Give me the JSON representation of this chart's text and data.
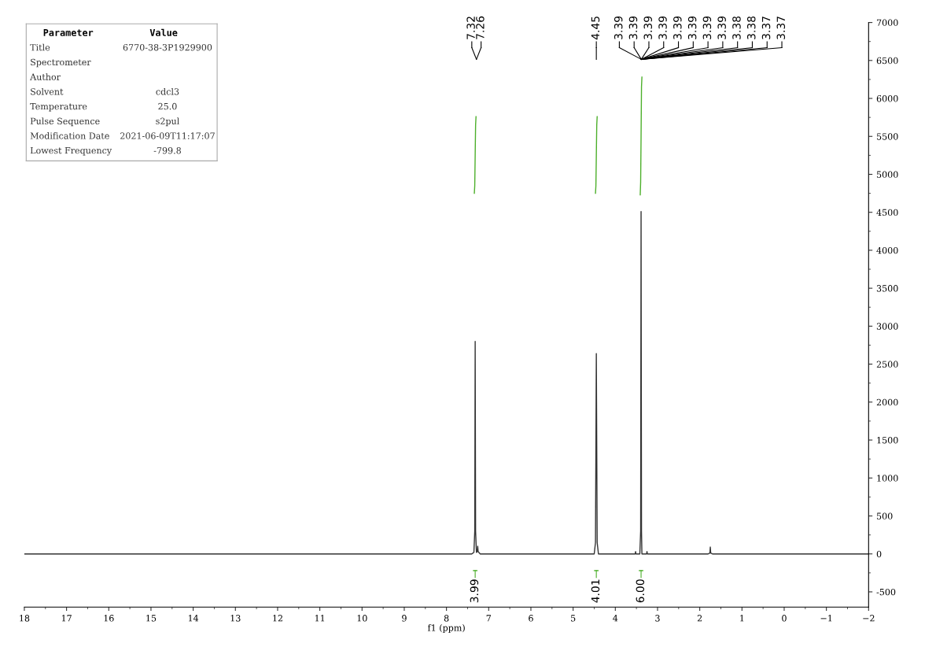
{
  "chart_data": [
    {
      "type": "other",
      "annotations": [
        "Parameter",
        "Value"
      ],
      "categories": [
        "Title",
        "Spectrometer",
        "Author",
        "Solvent",
        "Temperature",
        "Pulse Sequence",
        "Modification Date",
        "Lowest Frequency"
      ],
      "value_labels": [
        "6770-38-3P1929900",
        null,
        null,
        "cdcl3",
        "25.0",
        "s2pul",
        "2021-06-09T11:17:07",
        "-799.8"
      ]
    },
    {
      "type": "line",
      "xlabel": "f1 (ppm)",
      "xlim": [
        18,
        -2
      ],
      "ylim": [
        -700,
        7000
      ],
      "xticks": [
        18,
        17,
        16,
        15,
        14,
        13,
        12,
        11,
        10,
        9,
        8,
        7,
        6,
        5,
        4,
        3,
        2,
        1,
        0,
        {
          "value": -1,
          "label": "−1"
        },
        {
          "value": -2,
          "label": "−2"
        }
      ],
      "yticks": [
        -500,
        0,
        500,
        1000,
        1500,
        2000,
        2500,
        3000,
        3500,
        4000,
        4500,
        5000,
        5500,
        6000,
        6500,
        7000
      ],
      "grid": false,
      "legend": false,
      "marker": "none",
      "line_style": "solid",
      "series": [
        {
          "color": "#333333",
          "x": [
            18,
            8,
            7.4,
            7.35,
            7.33,
            7.32,
            7.31,
            7.29,
            7.27,
            7.26,
            7.25,
            7.2,
            5,
            4.5,
            4.47,
            4.45,
            4.43,
            4.4,
            3.6,
            3.53,
            3.52,
            3.51,
            3.42,
            3.4,
            3.39,
            3.38,
            3.37,
            3.3,
            3.26,
            3.25,
            3.24,
            3.2,
            1.8,
            1.76,
            1.75,
            1.74,
            1.7,
            -2
          ],
          "values": [
            0,
            0,
            0,
            20,
            300,
            2800,
            300,
            20,
            30,
            100,
            30,
            0,
            0,
            0,
            150,
            2640,
            150,
            0,
            0,
            0,
            30,
            0,
            0,
            300,
            4510,
            300,
            0,
            0,
            0,
            30,
            0,
            0,
            0,
            10,
            90,
            10,
            0,
            0
          ]
        },
        {
          "color": "#4caf2a",
          "x": [
            7.34,
            7.33,
            7.32,
            7.31,
            7.3
          ],
          "values": [
            4750,
            4850,
            5250,
            5650,
            5760
          ]
        },
        {
          "color": "#4caf2a",
          "x": [
            4.47,
            4.46,
            4.45,
            4.44,
            4.43
          ],
          "values": [
            4750,
            4850,
            5250,
            5650,
            5760
          ]
        },
        {
          "color": "#4caf2a",
          "x": [
            3.41,
            3.4,
            3.39,
            3.38,
            3.37
          ],
          "values": [
            4730,
            4900,
            5500,
            6150,
            6280
          ]
        },
        {
          "color": "#4caf2a",
          "x": [
            7.36,
            7.28
          ],
          "values": [
            -220,
            -220
          ]
        },
        {
          "color": "#4caf2a",
          "x": [
            4.49,
            4.41
          ],
          "values": [
            -220,
            -220
          ]
        },
        {
          "color": "#4caf2a",
          "x": [
            3.43,
            3.35
          ],
          "values": [
            -220,
            -220
          ]
        }
      ],
      "annotations": [
        {
          "text": "7.32",
          "x": 7.32
        },
        {
          "text": "7.26",
          "x": 7.26
        },
        {
          "text": "4.45",
          "x": 4.45
        },
        {
          "text": "3.39",
          "x": 3.39
        },
        {
          "text": "3.39",
          "x": 3.39
        },
        {
          "text": "3.39",
          "x": 3.39
        },
        {
          "text": "3.39",
          "x": 3.39
        },
        {
          "text": "3.39",
          "x": 3.39
        },
        {
          "text": "3.39",
          "x": 3.39
        },
        {
          "text": "3.39",
          "x": 3.39
        },
        {
          "text": "3.39",
          "x": 3.39
        },
        {
          "text": "3.38",
          "x": 3.38
        },
        {
          "text": "3.38",
          "x": 3.38
        },
        {
          "text": "3.37",
          "x": 3.37
        },
        {
          "text": "3.37",
          "x": 3.37
        },
        {
          "text": "3.99",
          "x": 7.32,
          "y": -220
        },
        {
          "text": "4.01",
          "x": 4.45,
          "y": -220
        },
        {
          "text": "6.00",
          "x": 3.39,
          "y": -220
        }
      ]
    }
  ]
}
